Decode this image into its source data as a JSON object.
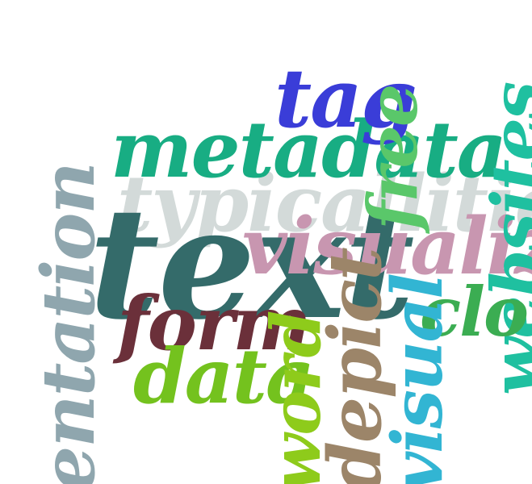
{
  "cloud": {
    "words": [
      {
        "text": "typicallitie",
        "color": "#d3dad9"
      },
      {
        "text": "text",
        "color": "#346b6a"
      },
      {
        "text": "metadata",
        "color": "#18ad83"
      },
      {
        "text": "visualiz",
        "color": "#c896b0"
      },
      {
        "text": "tag",
        "color": "#3a3dd8"
      },
      {
        "text": "free",
        "color": "#5ac76a"
      },
      {
        "text": "websites",
        "color": "#1fc0a0"
      },
      {
        "text": "clo",
        "color": "#3bad52"
      },
      {
        "text": "entation",
        "color": "#8fa6ae"
      },
      {
        "text": "form",
        "color": "#6b303a"
      },
      {
        "text": "data",
        "color": "#74c21e"
      },
      {
        "text": "word",
        "color": "#8ecb1b"
      },
      {
        "text": "depict",
        "color": "#9c8569"
      },
      {
        "text": "visual",
        "color": "#32b5d3"
      }
    ]
  }
}
